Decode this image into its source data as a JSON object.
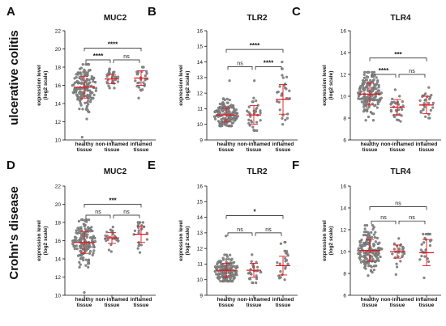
{
  "figure": {
    "rows": [
      {
        "label": "ulcerative colitis"
      },
      {
        "label": "Crohn's disease"
      }
    ]
  },
  "colors": {
    "points": "#8a8a8a",
    "points_stroke": "#555555",
    "mean_line": "#e0161b",
    "axis": "#111111"
  },
  "chart_data": [
    {
      "panel": "A",
      "type": "scatter",
      "title": "MUC2",
      "ylabel": [
        "expression level",
        "(log2 scale)"
      ],
      "ylim": [
        10,
        22
      ],
      "yticks": [
        10,
        12,
        14,
        16,
        18,
        20,
        22
      ],
      "categories": [
        [
          "healthy",
          "tissue"
        ],
        [
          "non-inflamed",
          "tissue"
        ],
        [
          "inflamed",
          "tissue"
        ]
      ],
      "groups": [
        {
          "n": 160,
          "mean": 15.8,
          "sd": 1.2,
          "min": 10.3,
          "max": 18.3
        },
        {
          "n": 30,
          "mean": 16.7,
          "sd": 0.5,
          "min": 15.7,
          "max": 17.8
        },
        {
          "n": 28,
          "mean": 16.8,
          "sd": 0.8,
          "min": 14.6,
          "max": 18.0
        }
      ],
      "comparisons": [
        {
          "from": 0,
          "to": 2,
          "label": "****",
          "level": 20.1
        },
        {
          "from": 0,
          "to": 1,
          "label": "****",
          "level": 18.8
        },
        {
          "from": 1,
          "to": 2,
          "label": "ns",
          "level": 18.8
        }
      ]
    },
    {
      "panel": "B",
      "type": "scatter",
      "title": "TLR2",
      "ylabel": [
        "expression level",
        "(log2 scale)"
      ],
      "ylim": [
        9,
        16
      ],
      "yticks": [
        9,
        10,
        11,
        12,
        13,
        14,
        15,
        16
      ],
      "categories": [
        [
          "healthy",
          "tissue"
        ],
        [
          "non-inflamed",
          "tissue"
        ],
        [
          "inflamed",
          "tissue"
        ]
      ],
      "groups": [
        {
          "n": 160,
          "mean": 10.6,
          "sd": 0.45,
          "min": 9.9,
          "max": 12.8
        },
        {
          "n": 32,
          "mean": 10.6,
          "sd": 0.6,
          "min": 9.6,
          "max": 12.8
        },
        {
          "n": 28,
          "mean": 11.6,
          "sd": 0.95,
          "min": 10.0,
          "max": 14.0
        }
      ],
      "comparisons": [
        {
          "from": 0,
          "to": 2,
          "label": "****",
          "level": 14.8
        },
        {
          "from": 0,
          "to": 1,
          "label": "ns",
          "level": 13.7
        },
        {
          "from": 1,
          "to": 2,
          "label": "****",
          "level": 13.7
        }
      ]
    },
    {
      "panel": "C",
      "type": "scatter",
      "title": "TLR4",
      "ylabel": [
        "expression level",
        "(log2 scale)"
      ],
      "ylim": [
        6,
        16
      ],
      "yticks": [
        6,
        8,
        10,
        12,
        14,
        16
      ],
      "categories": [
        [
          "healthy",
          "tissue"
        ],
        [
          "non-inflamed",
          "tissue"
        ],
        [
          "inflamed",
          "tissue"
        ]
      ],
      "groups": [
        {
          "n": 160,
          "mean": 10.2,
          "sd": 1.0,
          "min": 7.8,
          "max": 12.2
        },
        {
          "n": 30,
          "mean": 9.0,
          "sd": 0.7,
          "min": 7.7,
          "max": 10.6
        },
        {
          "n": 28,
          "mean": 9.2,
          "sd": 0.8,
          "min": 8.0,
          "max": 10.8
        }
      ],
      "comparisons": [
        {
          "from": 0,
          "to": 2,
          "label": "***",
          "level": 13.5
        },
        {
          "from": 0,
          "to": 1,
          "label": "****",
          "level": 12.0
        },
        {
          "from": 1,
          "to": 2,
          "label": "ns",
          "level": 12.0
        }
      ]
    },
    {
      "panel": "D",
      "type": "scatter",
      "title": "MUC2",
      "ylabel": [
        "expression level",
        "(log2 scale)"
      ],
      "ylim": [
        10,
        22
      ],
      "yticks": [
        10,
        12,
        14,
        16,
        18,
        20,
        22
      ],
      "categories": [
        [
          "healthy",
          "tissue"
        ],
        [
          "non-inflamed",
          "tissue"
        ],
        [
          "inflamed",
          "tissue"
        ]
      ],
      "groups": [
        {
          "n": 160,
          "mean": 15.8,
          "sd": 1.2,
          "min": 10.3,
          "max": 18.3
        },
        {
          "n": 28,
          "mean": 16.3,
          "sd": 0.6,
          "min": 14.8,
          "max": 17.5
        },
        {
          "n": 24,
          "mean": 16.7,
          "sd": 0.9,
          "min": 14.7,
          "max": 18.0
        }
      ],
      "comparisons": [
        {
          "from": 0,
          "to": 2,
          "label": "***",
          "level": 20.0
        },
        {
          "from": 0,
          "to": 1,
          "label": "ns",
          "level": 18.8
        },
        {
          "from": 1,
          "to": 2,
          "label": "ns",
          "level": 18.8
        }
      ]
    },
    {
      "panel": "E",
      "type": "scatter",
      "title": "TLR2",
      "ylabel": [
        "expression level",
        "(log2 scale)"
      ],
      "ylim": [
        9,
        16
      ],
      "yticks": [
        9,
        10,
        11,
        12,
        13,
        14,
        15,
        16
      ],
      "categories": [
        [
          "healthy",
          "tissue"
        ],
        [
          "non-inflamed",
          "tissue"
        ],
        [
          "inflamed",
          "tissue"
        ]
      ],
      "groups": [
        {
          "n": 160,
          "mean": 10.6,
          "sd": 0.45,
          "min": 9.9,
          "max": 12.8
        },
        {
          "n": 26,
          "mean": 10.6,
          "sd": 0.45,
          "min": 9.8,
          "max": 11.6
        },
        {
          "n": 22,
          "mean": 10.9,
          "sd": 0.6,
          "min": 10.0,
          "max": 12.4
        }
      ],
      "comparisons": [
        {
          "from": 0,
          "to": 2,
          "label": "*",
          "level": 14.1
        },
        {
          "from": 0,
          "to": 1,
          "label": "ns",
          "level": 13.0
        },
        {
          "from": 1,
          "to": 2,
          "label": "ns",
          "level": 13.0
        }
      ]
    },
    {
      "panel": "F",
      "type": "scatter",
      "title": "TLR4",
      "ylabel": [
        "expression level",
        "(log2 scale)"
      ],
      "ylim": [
        6,
        16
      ],
      "yticks": [
        6,
        8,
        10,
        12,
        14,
        16
      ],
      "categories": [
        [
          "healthy",
          "tissue"
        ],
        [
          "non-inflamed",
          "tissue"
        ],
        [
          "inflamed",
          "tissue"
        ]
      ],
      "groups": [
        {
          "n": 160,
          "mean": 10.1,
          "sd": 1.0,
          "min": 7.8,
          "max": 12.4
        },
        {
          "n": 26,
          "mean": 10.0,
          "sd": 0.6,
          "min": 7.9,
          "max": 11.2
        },
        {
          "n": 24,
          "mean": 9.9,
          "sd": 1.2,
          "min": 7.6,
          "max": 11.6
        }
      ],
      "comparisons": [
        {
          "from": 0,
          "to": 2,
          "label": "ns",
          "level": 14.1
        },
        {
          "from": 0,
          "to": 1,
          "label": "ns",
          "level": 12.8
        },
        {
          "from": 1,
          "to": 2,
          "label": "ns",
          "level": 12.8
        }
      ]
    }
  ]
}
